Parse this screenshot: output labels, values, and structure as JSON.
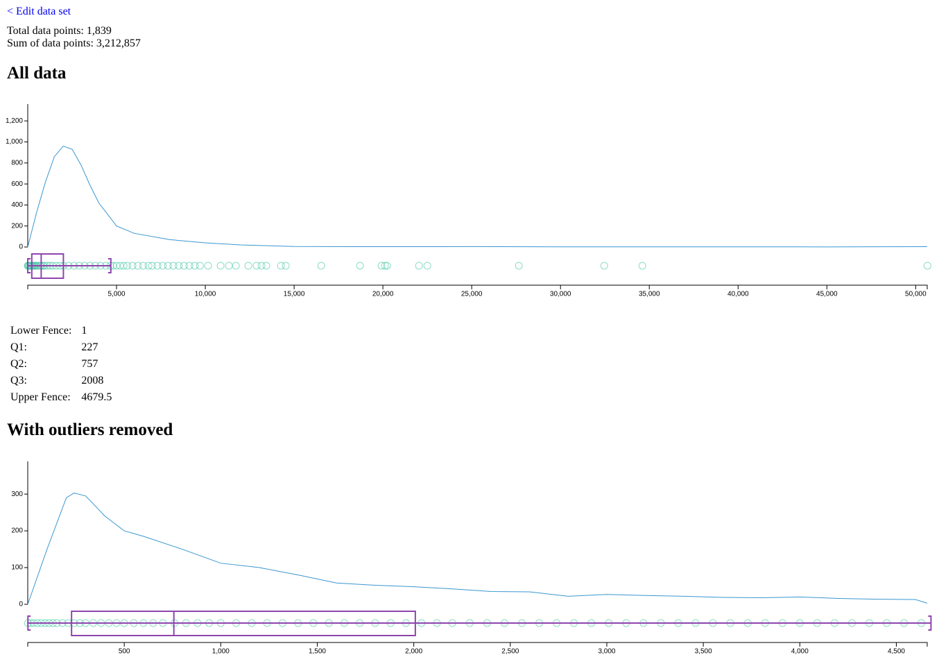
{
  "link": "< Edit data set",
  "stats": [
    "Total data points: 1,839",
    "Sum of data points: 3,212,857"
  ],
  "headings": [
    "All data",
    "With outliers removed"
  ],
  "fences": {
    "rows": [
      {
        "label": "Lower Fence:",
        "value": 1
      },
      {
        "label": "Q1:",
        "value": 227
      },
      {
        "label": "Q2:",
        "value": 757
      },
      {
        "label": "Q3:",
        "value": 2008
      },
      {
        "label": "Upper Fence:",
        "value": 4679.5
      }
    ]
  },
  "chart_data": [
    {
      "type": "density",
      "color": "#3a96d0",
      "point_color": "#3cc4a0",
      "box_color": "#8e44ad",
      "xlim": [
        0,
        50650
      ],
      "ylim": [
        0,
        1360
      ],
      "xticks": [
        {
          "value": 5000,
          "label": "5,000"
        },
        {
          "value": 10000,
          "label": "10,000"
        },
        {
          "value": 15000,
          "label": "15,000"
        },
        {
          "value": 20000,
          "label": "20,000"
        },
        {
          "value": 25000,
          "label": "25,000"
        },
        {
          "value": 30000,
          "label": "30,000"
        },
        {
          "value": 35000,
          "label": "35,000"
        },
        {
          "value": 40000,
          "label": "40,000"
        },
        {
          "value": 45000,
          "label": "45,000"
        },
        {
          "value": 50000,
          "label": "50,000"
        }
      ],
      "yticks": [
        0,
        200,
        400,
        600,
        800,
        {
          "value": 1000,
          "label": "1,000"
        },
        {
          "value": 1200,
          "label": "1,200"
        }
      ],
      "density": {
        "x": [
          0,
          500,
          1000,
          1500,
          2000,
          2500,
          3000,
          3500,
          4000,
          5000,
          6000,
          8000,
          10000,
          12000,
          15000,
          20000,
          25000,
          30000,
          35000,
          40000,
          45000,
          50650
        ],
        "y": [
          0,
          330,
          620,
          860,
          960,
          930,
          780,
          590,
          420,
          200,
          130,
          70,
          40,
          20,
          5,
          3,
          4,
          2,
          2,
          2,
          1,
          3
        ]
      },
      "points": [
        1,
        20,
        50,
        80,
        120,
        160,
        200,
        227,
        260,
        300,
        350,
        400,
        450,
        500,
        600,
        700,
        757,
        850,
        950,
        1100,
        1250,
        1400,
        1600,
        1800,
        2008,
        2300,
        2600,
        2900,
        3200,
        3500,
        3800,
        4100,
        4400,
        4650,
        4800,
        5000,
        5200,
        5400,
        5600,
        5900,
        6200,
        6500,
        6800,
        7000,
        7300,
        7600,
        7900,
        8200,
        8500,
        8800,
        9100,
        9400,
        9700,
        10156,
        10859,
        11328,
        11719,
        12422,
        12891,
        13164,
        13438,
        14258,
        14531,
        16523,
        18711,
        19922,
        20117,
        20234,
        22031,
        22500,
        27656,
        32461,
        34609,
        50664
      ]
    },
    {
      "type": "density",
      "color": "#3a96d0",
      "point_color": "#3cc4a0",
      "box_color": "#8e44ad",
      "xlim": [
        0,
        4660
      ],
      "ylim": [
        0,
        389
      ],
      "xticks": [
        500,
        {
          "value": 1000,
          "label": "1,000"
        },
        {
          "value": 1500,
          "label": "1,500"
        },
        {
          "value": 2000,
          "label": "2,000"
        },
        {
          "value": 2500,
          "label": "2,500"
        },
        {
          "value": 3000,
          "label": "3,000"
        },
        {
          "value": 3500,
          "label": "3,500"
        },
        {
          "value": 4000,
          "label": "4,000"
        },
        {
          "value": 4500,
          "label": "4,500"
        }
      ],
      "yticks": [
        0,
        100,
        200,
        300
      ],
      "density": {
        "x": [
          0,
          100,
          200,
          240,
          300,
          400,
          500,
          600,
          800,
          1000,
          1200,
          1400,
          1600,
          1800,
          2000,
          2200,
          2400,
          2600,
          2800,
          3000,
          3200,
          3400,
          3600,
          3800,
          4000,
          4200,
          4400,
          4600,
          4660
        ],
        "y": [
          0,
          150,
          290,
          303,
          295,
          240,
          200,
          185,
          150,
          112,
          100,
          80,
          58,
          52,
          48,
          42,
          35,
          34,
          22,
          27,
          24,
          22,
          19,
          18,
          20,
          16,
          14,
          13,
          3
        ]
      },
      "points": [
        1,
        15,
        30,
        50,
        70,
        90,
        110,
        130,
        150,
        180,
        210,
        240,
        270,
        300,
        340,
        380,
        420,
        460,
        500,
        550,
        600,
        650,
        700,
        760,
        820,
        880,
        940,
        1000,
        1080,
        1160,
        1240,
        1320,
        1400,
        1480,
        1560,
        1640,
        1720,
        1800,
        1880,
        1960,
        2040,
        2120,
        2200,
        2290,
        2380,
        2470,
        2560,
        2650,
        2740,
        2830,
        2920,
        3010,
        3100,
        3190,
        3280,
        3370,
        3460,
        3550,
        3640,
        3730,
        3820,
        3910,
        4000,
        4090,
        4180,
        4270,
        4360,
        4450,
        4540,
        4630
      ]
    }
  ]
}
